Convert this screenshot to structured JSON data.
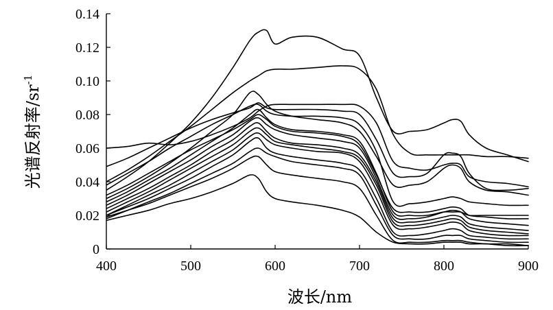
{
  "chart_data": {
    "type": "line",
    "xlabel": "波长/nm",
    "ylabel": "光谱反射率/sr",
    "ylabel_superscript": "-1",
    "xlim": [
      400,
      900
    ],
    "ylim": [
      0,
      0.14
    ],
    "xticks": [
      "400",
      "500",
      "600",
      "700",
      "800",
      "900"
    ],
    "yticks": [
      "0",
      "0.02",
      "0.04",
      "0.06",
      "0.08",
      "0.10",
      "0.12",
      "0.14"
    ],
    "grid": false,
    "line_color": "#000000",
    "x": [
      400,
      425,
      450,
      475,
      500,
      525,
      550,
      570,
      580,
      590,
      600,
      620,
      650,
      680,
      700,
      720,
      740,
      760,
      780,
      800,
      810,
      820,
      830,
      850,
      875,
      900
    ],
    "series": [
      {
        "values": [
          0.035,
          0.043,
          0.052,
          0.063,
          0.075,
          0.09,
          0.108,
          0.124,
          0.129,
          0.13,
          0.122,
          0.126,
          0.126,
          0.119,
          0.115,
          0.09,
          0.07,
          0.07,
          0.071,
          0.075,
          0.077,
          0.076,
          0.068,
          0.06,
          0.056,
          0.052
        ]
      },
      {
        "values": [
          0.04,
          0.047,
          0.055,
          0.064,
          0.073,
          0.083,
          0.093,
          0.1,
          0.103,
          0.106,
          0.107,
          0.107,
          0.108,
          0.109,
          0.107,
          0.095,
          0.068,
          0.057,
          0.056,
          0.056,
          0.056,
          0.056,
          0.056,
          0.055,
          0.055,
          0.054
        ]
      },
      {
        "values": [
          0.06,
          0.061,
          0.063,
          0.062,
          0.064,
          0.068,
          0.073,
          0.078,
          0.082,
          0.085,
          0.086,
          0.086,
          0.086,
          0.086,
          0.085,
          0.075,
          0.052,
          0.048,
          0.047,
          0.05,
          0.051,
          0.05,
          0.043,
          0.04,
          0.039,
          0.037
        ]
      },
      {
        "values": [
          0.049,
          0.054,
          0.06,
          0.066,
          0.072,
          0.077,
          0.081,
          0.084,
          0.087,
          0.084,
          0.083,
          0.083,
          0.083,
          0.082,
          0.08,
          0.065,
          0.045,
          0.043,
          0.045,
          0.056,
          0.057,
          0.055,
          0.045,
          0.036,
          0.035,
          0.036
        ]
      },
      {
        "values": [
          0.03,
          0.036,
          0.043,
          0.051,
          0.06,
          0.07,
          0.08,
          0.093,
          0.092,
          0.086,
          0.082,
          0.079,
          0.077,
          0.075,
          0.07,
          0.055,
          0.038,
          0.038,
          0.04,
          0.048,
          0.05,
          0.048,
          0.04,
          0.035,
          0.034,
          0.032
        ]
      },
      {
        "values": [
          0.038,
          0.045,
          0.052,
          0.06,
          0.067,
          0.074,
          0.08,
          0.085,
          0.086,
          0.082,
          0.08,
          0.079,
          0.079,
          0.078,
          0.074,
          0.058,
          0.028,
          0.027,
          0.028,
          0.03,
          0.031,
          0.03,
          0.028,
          0.027,
          0.026,
          0.026
        ]
      },
      {
        "values": [
          0.032,
          0.038,
          0.045,
          0.052,
          0.059,
          0.065,
          0.071,
          0.077,
          0.08,
          0.077,
          0.073,
          0.07,
          0.069,
          0.067,
          0.062,
          0.044,
          0.024,
          0.022,
          0.022,
          0.024,
          0.025,
          0.024,
          0.02,
          0.019,
          0.018,
          0.018
        ]
      },
      {
        "values": [
          0.028,
          0.034,
          0.041,
          0.048,
          0.056,
          0.064,
          0.072,
          0.08,
          0.083,
          0.078,
          0.074,
          0.071,
          0.07,
          0.068,
          0.064,
          0.045,
          0.022,
          0.02,
          0.02,
          0.022,
          0.022,
          0.022,
          0.02,
          0.02,
          0.02,
          0.02
        ]
      },
      {
        "values": [
          0.026,
          0.032,
          0.039,
          0.046,
          0.053,
          0.061,
          0.068,
          0.076,
          0.078,
          0.074,
          0.071,
          0.068,
          0.066,
          0.064,
          0.06,
          0.042,
          0.02,
          0.018,
          0.019,
          0.022,
          0.023,
          0.022,
          0.018,
          0.016,
          0.015,
          0.014
        ]
      },
      {
        "values": [
          0.024,
          0.03,
          0.036,
          0.043,
          0.05,
          0.058,
          0.065,
          0.073,
          0.075,
          0.07,
          0.066,
          0.063,
          0.062,
          0.06,
          0.056,
          0.04,
          0.018,
          0.016,
          0.017,
          0.019,
          0.02,
          0.019,
          0.015,
          0.013,
          0.012,
          0.011
        ]
      },
      {
        "values": [
          0.022,
          0.028,
          0.034,
          0.041,
          0.048,
          0.055,
          0.062,
          0.07,
          0.072,
          0.068,
          0.064,
          0.062,
          0.06,
          0.058,
          0.054,
          0.038,
          0.016,
          0.014,
          0.015,
          0.017,
          0.018,
          0.017,
          0.013,
          0.011,
          0.01,
          0.009
        ]
      },
      {
        "values": [
          0.02,
          0.026,
          0.032,
          0.038,
          0.045,
          0.052,
          0.059,
          0.067,
          0.069,
          0.065,
          0.062,
          0.06,
          0.058,
          0.057,
          0.052,
          0.035,
          0.014,
          0.012,
          0.013,
          0.015,
          0.016,
          0.015,
          0.011,
          0.009,
          0.008,
          0.008
        ]
      },
      {
        "values": [
          0.02,
          0.025,
          0.03,
          0.036,
          0.042,
          0.049,
          0.056,
          0.064,
          0.066,
          0.06,
          0.057,
          0.055,
          0.053,
          0.051,
          0.047,
          0.03,
          0.01,
          0.008,
          0.009,
          0.011,
          0.012,
          0.011,
          0.008,
          0.007,
          0.006,
          0.006
        ]
      },
      {
        "values": [
          0.018,
          0.023,
          0.028,
          0.033,
          0.039,
          0.045,
          0.051,
          0.058,
          0.06,
          0.057,
          0.055,
          0.052,
          0.05,
          0.048,
          0.044,
          0.026,
          0.008,
          0.006,
          0.006,
          0.008,
          0.008,
          0.008,
          0.006,
          0.005,
          0.004,
          0.004
        ]
      },
      {
        "values": [
          0.019,
          0.023,
          0.027,
          0.032,
          0.037,
          0.042,
          0.048,
          0.054,
          0.055,
          0.05,
          0.046,
          0.044,
          0.042,
          0.04,
          0.036,
          0.02,
          0.005,
          0.004,
          0.004,
          0.005,
          0.005,
          0.005,
          0.004,
          0.003,
          0.003,
          0.002
        ]
      },
      {
        "values": [
          0.017,
          0.02,
          0.023,
          0.027,
          0.03,
          0.034,
          0.039,
          0.044,
          0.042,
          0.034,
          0.03,
          0.028,
          0.026,
          0.023,
          0.019,
          0.01,
          0.004,
          0.003,
          0.003,
          0.004,
          0.004,
          0.004,
          0.003,
          0.003,
          0.002,
          0.002
        ]
      }
    ]
  }
}
